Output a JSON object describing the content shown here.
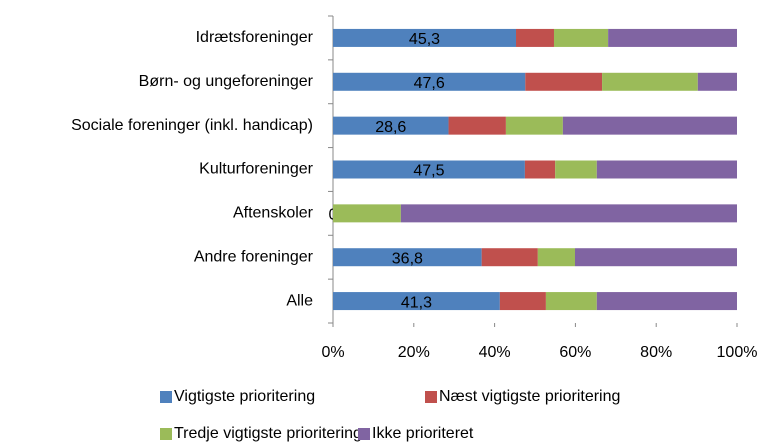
{
  "chart_data": {
    "type": "stacked-barh",
    "categories": [
      "Idrætsforeninger",
      "Børn- og ungeforeninger ",
      "Sociale foreninger (inkl. handicap)",
      "Kulturforeninger",
      "Aftenskoler",
      "Andre foreninger",
      "Alle"
    ],
    "series": [
      {
        "name": "Vigtigste prioritering",
        "color": "#4f81bd",
        "values": [
          45.3,
          47.6,
          28.6,
          47.5,
          0,
          36.8,
          41.3
        ],
        "value_labels": [
          "45,3",
          "47,6",
          "28,6",
          "47,5",
          "0",
          "36,8",
          "41,3"
        ]
      },
      {
        "name": "Næst vigtigste prioritering",
        "color": "#c0504d",
        "values": [
          9.4,
          19.0,
          14.2,
          7.5,
          0,
          13.9,
          11.4
        ]
      },
      {
        "name": "Tredje vigtigste prioritering",
        "color": "#9bbb59",
        "values": [
          13.4,
          23.7,
          14.1,
          10.3,
          16.8,
          9.2,
          12.6
        ]
      },
      {
        "name": "Ikke prioriteret",
        "color": "#8064a2",
        "values": [
          31.9,
          9.7,
          43.1,
          34.7,
          83.2,
          40.1,
          34.7
        ]
      }
    ],
    "xlim": [
      0,
      100
    ],
    "xticks": [
      {
        "value": 0,
        "label": "0%"
      },
      {
        "value": 20,
        "label": "20%"
      },
      {
        "value": 40,
        "label": "40%"
      },
      {
        "value": 60,
        "label": "60%"
      },
      {
        "value": 80,
        "label": "80%"
      },
      {
        "value": 100,
        "label": "100%"
      }
    ],
    "grid": false
  }
}
